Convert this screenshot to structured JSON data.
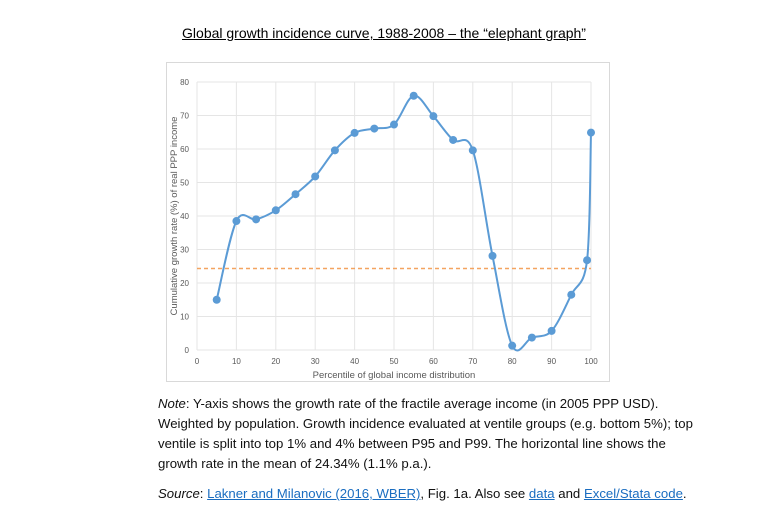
{
  "title": "Global growth incidence curve, 1988-2008 – the “elephant graph”",
  "chart_data": {
    "type": "line",
    "title": "",
    "xlabel": "Percentile of global income distribution",
    "ylabel": "Cumulative growth rate (%) of real PPP income",
    "xlim": [
      0,
      100
    ],
    "ylim": [
      0,
      80
    ],
    "xticks": [
      0,
      10,
      20,
      30,
      40,
      50,
      60,
      70,
      80,
      90,
      100
    ],
    "yticks": [
      0,
      10,
      20,
      30,
      40,
      50,
      60,
      70,
      80
    ],
    "grid": true,
    "smoothed": true,
    "series": [
      {
        "x": [
          5,
          10,
          15,
          20,
          25,
          30,
          35,
          40,
          45,
          50,
          55,
          60,
          65,
          70,
          75,
          80,
          85,
          90,
          95,
          99,
          100
        ],
        "y": [
          15,
          38.5,
          39,
          41.7,
          46.5,
          51.8,
          59.6,
          64.8,
          66.1,
          67.3,
          75.9,
          69.8,
          62.7,
          59.6,
          28.1,
          1.3,
          3.7,
          5.7,
          16.5,
          26.8,
          64.9
        ],
        "color": "#5b9bd5"
      }
    ],
    "reference_line": {
      "y": 24.34,
      "color": "#f4a460",
      "style": "dashed"
    }
  },
  "note": {
    "label": "Note",
    "text": ": Y-axis shows the growth rate of the fractile average income (in 2005 PPP USD). Weighted by population. Growth incidence evaluated at ventile groups (e.g. bottom 5%); top ventile is split into top 1% and 4% between P95 and P99. The horizontal line shows the growth rate in the mean of 24.34% (1.1% p.a.)."
  },
  "source": {
    "label": "Source",
    "sep": ": ",
    "link1": "Lakner and Milanovic (2016, WBER)",
    "mid": ", Fig. 1a. Also see ",
    "link2": "data",
    "and": " and ",
    "link3": "Excel/Stata code",
    "end": "."
  }
}
